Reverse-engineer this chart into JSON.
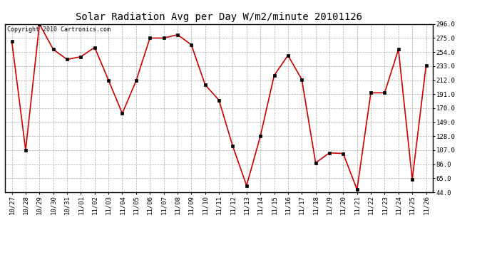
{
  "title": "Solar Radiation Avg per Day W/m2/minute 20101126",
  "copyright": "Copyright 2010 Cartronics.com",
  "labels": [
    "10/27",
    "10/28",
    "10/29",
    "10/30",
    "10/31",
    "11/01",
    "11/02",
    "11/03",
    "11/04",
    "11/05",
    "11/06",
    "11/07",
    "11/08",
    "11/09",
    "11/10",
    "11/11",
    "11/12",
    "11/13",
    "11/14",
    "11/15",
    "11/16",
    "11/17",
    "11/18",
    "11/19",
    "11/20",
    "11/21",
    "11/22",
    "11/23",
    "11/24",
    "11/25",
    "11/26"
  ],
  "values": [
    270,
    107,
    296,
    258,
    243,
    247,
    261,
    212,
    162,
    211,
    275,
    275,
    280,
    265,
    205,
    182,
    113,
    54,
    128,
    219,
    249,
    213,
    88,
    103,
    102,
    48,
    193,
    193,
    258,
    63,
    234
  ],
  "line_color": "#cc0000",
  "marker_color": "#000000",
  "marker_size": 2.5,
  "line_width": 1.2,
  "background_color": "#ffffff",
  "plot_bg_color": "#ffffff",
  "grid_color": "#aaaaaa",
  "grid_style": "--",
  "yticks": [
    44.0,
    65.0,
    86.0,
    107.0,
    128.0,
    149.0,
    170.0,
    191.0,
    212.0,
    233.0,
    254.0,
    275.0,
    296.0
  ],
  "ylim": [
    44.0,
    296.0
  ],
  "title_fontsize": 10,
  "tick_fontsize": 6.5,
  "copyright_fontsize": 6
}
